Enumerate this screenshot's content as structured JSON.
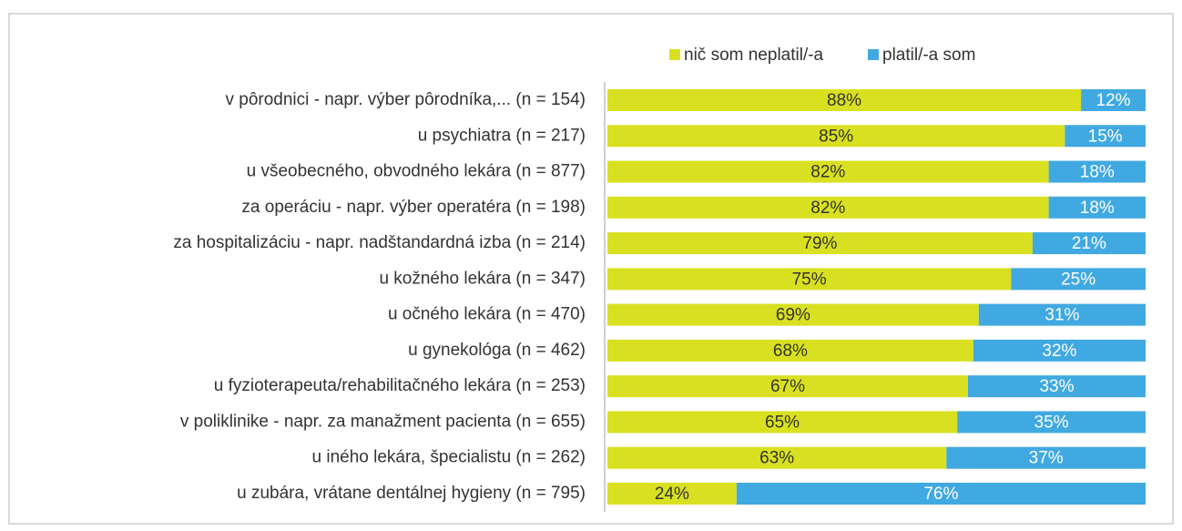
{
  "chart_data": {
    "type": "bar",
    "orientation": "horizontal",
    "stacked": true,
    "categories": [
      "v pôrodnici - napr. výber pôrodníka,... (n = 154)",
      "u psychiatra (n = 217)",
      "u všeobecného, obvodného lekára (n = 877)",
      "za operáciu - napr. výber operatéra (n = 198)",
      "za hospitalizáciu - napr. nadštandardná izba (n = 214)",
      "u kožného lekára (n = 347)",
      "u očného lekára (n = 470)",
      "u gynekológa (n = 462)",
      "u fyzioterapeuta/rehabilitačného lekára (n = 253)",
      "v poliklinike - napr. za manažment pacienta (n = 655)",
      "u iného lekára, špecialistu (n = 262)",
      "u zubára, vrátane dentálnej hygieny (n = 795)"
    ],
    "series": [
      {
        "name": "nič som neplatil/-a",
        "color": "#d9e021",
        "values": [
          88,
          85,
          82,
          82,
          79,
          75,
          69,
          68,
          67,
          65,
          63,
          24
        ],
        "value_labels": [
          "88%",
          "85%",
          "82%",
          "82%",
          "79%",
          "75%",
          "69%",
          "68%",
          "67%",
          "65%",
          "63%",
          "24%"
        ]
      },
      {
        "name": "platil/-a som",
        "color": "#41a9e1",
        "values": [
          12,
          15,
          18,
          18,
          21,
          25,
          31,
          32,
          33,
          35,
          37,
          76
        ],
        "value_labels": [
          "12%",
          "15%",
          "18%",
          "18%",
          "21%",
          "25%",
          "31%",
          "32%",
          "33%",
          "35%",
          "37%",
          "76%"
        ]
      }
    ],
    "xlim": [
      0,
      100
    ],
    "legend": "top"
  }
}
